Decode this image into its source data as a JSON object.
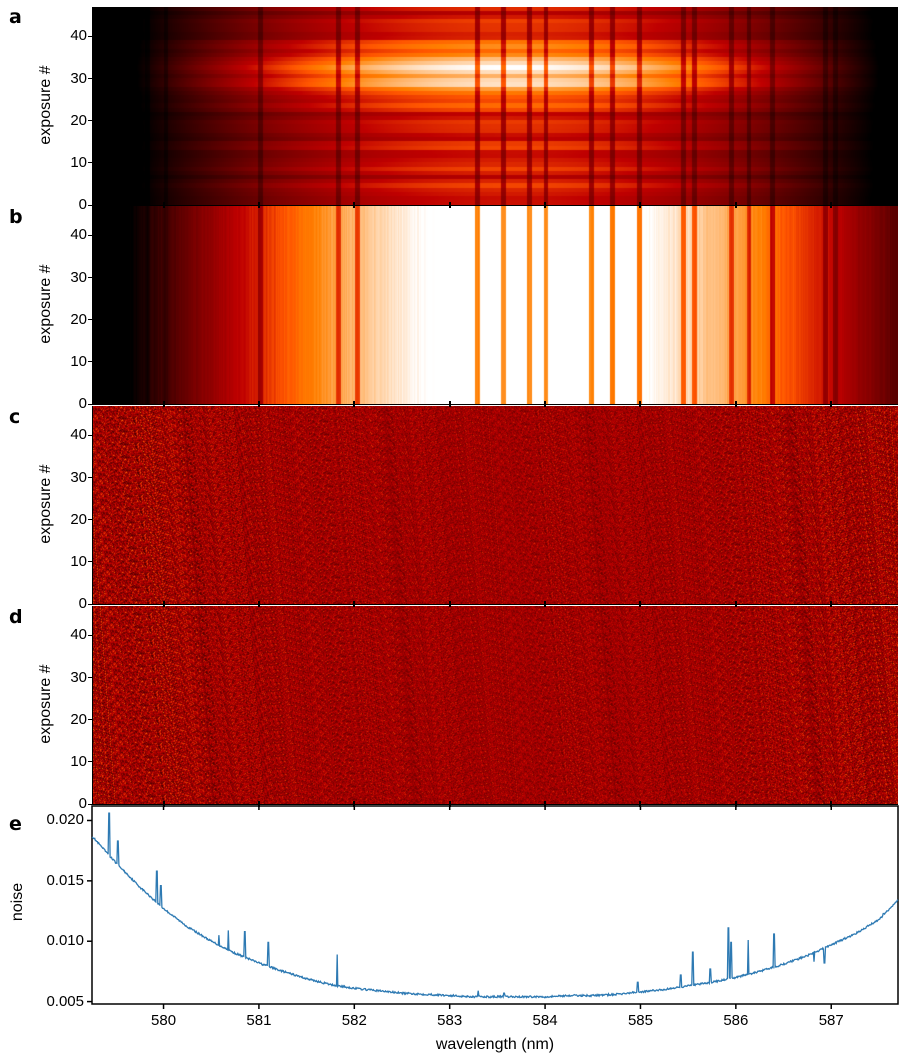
{
  "chart_data": [
    {
      "panel": "a",
      "type": "heatmap",
      "ylabel": "exposure #",
      "yticks": [
        "0",
        "10",
        "20",
        "30",
        "40"
      ],
      "ylim": [
        0,
        47
      ],
      "xlim": [
        579.25,
        587.7
      ],
      "colormap": "gist_heat",
      "description": "raw spectra; bright band around exposures 28-34, strong vertical absorption lines"
    },
    {
      "panel": "b",
      "type": "heatmap",
      "ylabel": "exposure #",
      "yticks": [
        "0",
        "10",
        "20",
        "30",
        "40"
      ],
      "ylim": [
        0,
        47
      ],
      "xlim": [
        579.25,
        587.7
      ],
      "colormap": "gist_heat",
      "description": "normalized spectra; bright center near 583-584.5 nm"
    },
    {
      "panel": "c",
      "type": "heatmap",
      "ylabel": "exposure #",
      "yticks": [
        "0",
        "10",
        "20",
        "30",
        "40"
      ],
      "ylim": [
        0,
        47
      ],
      "xlim": [
        579.25,
        587.7
      ],
      "colormap": "gist_heat",
      "description": "residual noise"
    },
    {
      "panel": "d",
      "type": "heatmap",
      "ylabel": "exposure #",
      "yticks": [
        "0",
        "10",
        "20",
        "30",
        "40"
      ],
      "ylim": [
        0,
        47
      ],
      "xlim": [
        579.25,
        587.7
      ],
      "colormap": "gist_heat",
      "description": "residual noise"
    },
    {
      "panel": "e",
      "type": "line",
      "ylabel": "noise",
      "xlabel": "wavelength (nm)",
      "xticks": [
        "580",
        "581",
        "582",
        "583",
        "584",
        "585",
        "586",
        "587"
      ],
      "yticks": [
        "0.005",
        "0.010",
        "0.015",
        "0.020"
      ],
      "xlim": [
        579.25,
        587.7
      ],
      "ylim": [
        0.0048,
        0.0212
      ],
      "color": "#2e7ab3",
      "series": [
        {
          "x": [
            579.25,
            579.5,
            579.75,
            580.0,
            580.25,
            580.5,
            580.75,
            581.0,
            581.25,
            581.5,
            581.75,
            582.0,
            582.25,
            582.5,
            582.75,
            583.0,
            583.25,
            583.5,
            583.75,
            584.0,
            584.25,
            584.5,
            584.75,
            585.0,
            585.25,
            585.5,
            585.75,
            586.0,
            586.25,
            586.5,
            586.75,
            587.0,
            587.25,
            587.5,
            587.7
          ],
          "y": [
            0.0187,
            0.0165,
            0.0145,
            0.0127,
            0.0112,
            0.01,
            0.009,
            0.0082,
            0.0075,
            0.0069,
            0.0064,
            0.0061,
            0.0059,
            0.0057,
            0.0056,
            0.0055,
            0.0054,
            0.0054,
            0.0054,
            0.0054,
            0.0055,
            0.0055,
            0.0056,
            0.0058,
            0.006,
            0.0063,
            0.0066,
            0.007,
            0.0075,
            0.0081,
            0.0088,
            0.0097,
            0.0106,
            0.0118,
            0.0134
          ]
        }
      ],
      "spikes": [
        {
          "x": 579.43,
          "y": 0.0206
        },
        {
          "x": 579.52,
          "y": 0.0183
        },
        {
          "x": 579.93,
          "y": 0.0158
        },
        {
          "x": 579.97,
          "y": 0.0146
        },
        {
          "x": 580.58,
          "y": 0.0105
        },
        {
          "x": 580.68,
          "y": 0.0109
        },
        {
          "x": 580.85,
          "y": 0.0108
        },
        {
          "x": 581.1,
          "y": 0.0099
        },
        {
          "x": 581.82,
          "y": 0.0089
        },
        {
          "x": 583.3,
          "y": 0.0059
        },
        {
          "x": 583.57,
          "y": 0.0057
        },
        {
          "x": 584.97,
          "y": 0.0066
        },
        {
          "x": 585.42,
          "y": 0.0072
        },
        {
          "x": 585.55,
          "y": 0.0091
        },
        {
          "x": 585.73,
          "y": 0.0077
        },
        {
          "x": 585.92,
          "y": 0.0111
        },
        {
          "x": 585.95,
          "y": 0.0099
        },
        {
          "x": 586.13,
          "y": 0.0101
        },
        {
          "x": 586.4,
          "y": 0.0106
        },
        {
          "x": 586.82,
          "y": 0.0083
        },
        {
          "x": 586.93,
          "y": 0.0082
        },
        {
          "x": 587.55,
          "y": 0.0123
        }
      ]
    }
  ],
  "panel_letters": [
    "a",
    "b",
    "c",
    "d",
    "e"
  ]
}
